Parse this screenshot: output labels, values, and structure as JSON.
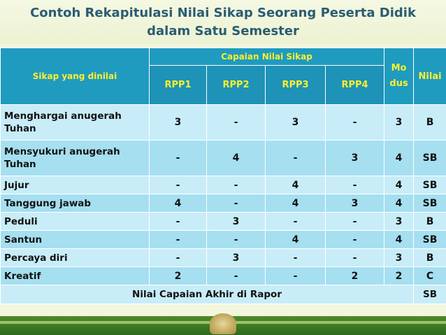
{
  "title": {
    "line1": "Contoh Rekapitulasi Nilai Sikap Seorang Peserta Didik",
    "line2": "dalam Satu Semester"
  },
  "table": {
    "header": {
      "aspect": "Sikap yang dinilai",
      "group": "Capaian Nilai Sikap",
      "rpp": [
        "RPP1",
        "RPP2",
        "RPP3",
        "RPP4"
      ],
      "modus_line1": "Mo",
      "modus_line2": "dus",
      "nilai": "Nilai"
    },
    "rows": [
      {
        "aspect": "Menghargai anugerah Tuhan",
        "rpp": [
          "3",
          "-",
          "3",
          "-"
        ],
        "modus": "3",
        "nilai": "B"
      },
      {
        "aspect": "Mensyukuri anugerah Tuhan",
        "rpp": [
          "-",
          "4",
          "-",
          "3"
        ],
        "modus": "4",
        "nilai": "SB"
      },
      {
        "aspect": "Jujur",
        "rpp": [
          "-",
          "-",
          "4",
          "-"
        ],
        "modus": "4",
        "nilai": "SB"
      },
      {
        "aspect": "Tanggung jawab",
        "rpp": [
          "4",
          "-",
          "4",
          "3"
        ],
        "modus": "4",
        "nilai": "SB"
      },
      {
        "aspect": "Peduli",
        "rpp": [
          "-",
          "3",
          "-",
          "-"
        ],
        "modus": "3",
        "nilai": "B"
      },
      {
        "aspect": "Santun",
        "rpp": [
          "-",
          "-",
          "4",
          "-"
        ],
        "modus": "4",
        "nilai": "SB"
      },
      {
        "aspect": "Percaya diri",
        "rpp": [
          "-",
          "3",
          "-",
          "-"
        ],
        "modus": "3",
        "nilai": "B"
      },
      {
        "aspect": "Kreatif",
        "rpp": [
          "2",
          "-",
          "-",
          "2"
        ],
        "modus": "2",
        "nilai": "C"
      }
    ],
    "final": {
      "label": "Nilai Capaian Akhir di Rapor",
      "nilai": "SB"
    }
  },
  "colors": {
    "title": "#2a5c73",
    "header_bg": "#1f9bbf",
    "header_text": "#ffef2e",
    "row_light": "#c8edf8",
    "row_dark": "#a5dff0",
    "band": "#3f7d24"
  }
}
